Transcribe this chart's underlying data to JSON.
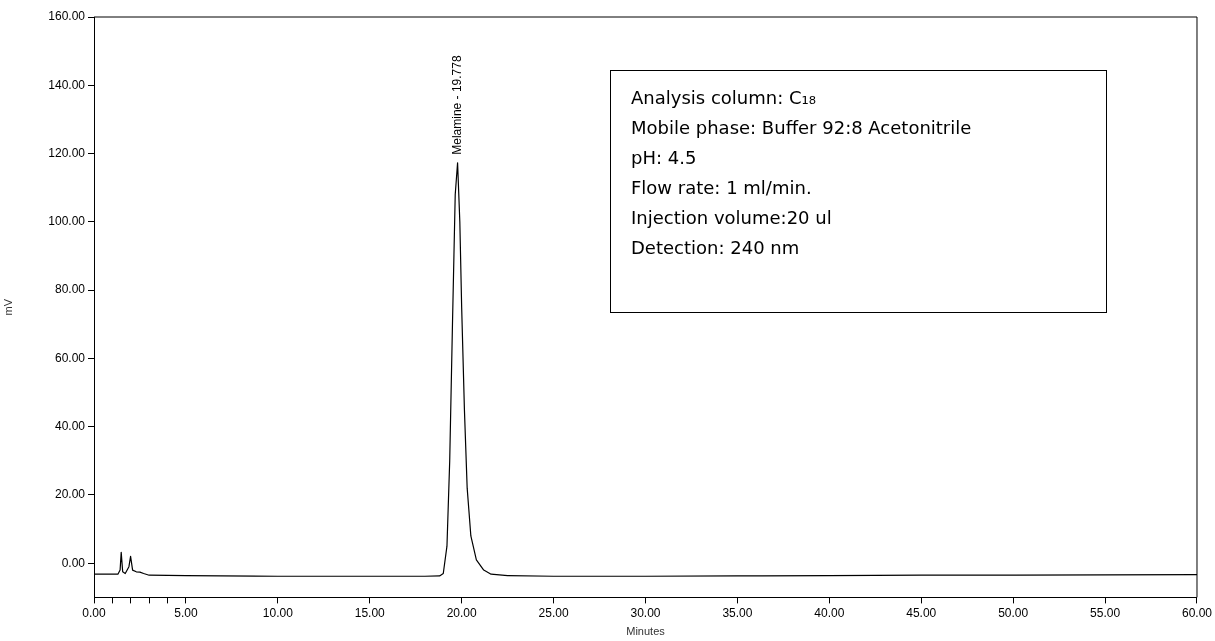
{
  "chart_data": {
    "type": "line",
    "xlabel": "Minutes",
    "ylabel": "mV",
    "xlim": [
      0,
      60
    ],
    "ylim": [
      -10,
      160
    ],
    "xticks": [
      {
        "value": 1,
        "label": null
      },
      {
        "value": 2,
        "label": null
      },
      {
        "value": 3,
        "label": null
      },
      {
        "value": 4,
        "label": null
      },
      {
        "value": 0,
        "label": "0.00"
      },
      {
        "value": 5,
        "label": "5.00"
      },
      {
        "value": 10,
        "label": "10.00"
      },
      {
        "value": 15,
        "label": "15.00"
      },
      {
        "value": 20,
        "label": "20.00"
      },
      {
        "value": 25,
        "label": "25.00"
      },
      {
        "value": 30,
        "label": "30.00"
      },
      {
        "value": 35,
        "label": "35.00"
      },
      {
        "value": 40,
        "label": "40.00"
      },
      {
        "value": 45,
        "label": "45.00"
      },
      {
        "value": 50,
        "label": "50.00"
      },
      {
        "value": 55,
        "label": "55.00"
      },
      {
        "value": 60,
        "label": "60.00"
      }
    ],
    "yticks": [
      {
        "value": 0,
        "label": "0.00"
      },
      {
        "value": 20,
        "label": "20.00"
      },
      {
        "value": 40,
        "label": "40.00"
      },
      {
        "value": 60,
        "label": "60.00"
      },
      {
        "value": 80,
        "label": "80.00"
      },
      {
        "value": 100,
        "label": "100.00"
      },
      {
        "value": 120,
        "label": "120.00"
      },
      {
        "value": 140,
        "label": "140.00"
      },
      {
        "value": 160,
        "label": "160.00"
      }
    ],
    "series": [
      {
        "color": "#000000",
        "x": [
          0,
          1.3,
          1.42,
          1.48,
          1.56,
          1.7,
          1.9,
          1.99,
          2.1,
          2.3,
          2.5,
          2.7,
          3,
          5,
          10,
          15,
          18,
          18.8,
          19,
          19.2,
          19.35,
          19.5,
          19.65,
          19.778,
          19.9,
          20,
          20.15,
          20.3,
          20.5,
          20.8,
          21.2,
          21.6,
          22.5,
          25,
          30,
          35,
          40,
          45,
          50,
          55,
          60
        ],
        "values": [
          -3.2,
          -3.2,
          -2,
          3.2,
          -2.5,
          -3,
          -1,
          2,
          -2,
          -2.5,
          -2.6,
          -3,
          -3.5,
          -3.6,
          -3.8,
          -3.8,
          -3.8,
          -3.7,
          -3,
          5,
          30,
          70,
          108,
          117.3,
          100,
          75,
          45,
          22,
          8,
          1,
          -2,
          -3.2,
          -3.6,
          -3.8,
          -3.8,
          -3.7,
          -3.6,
          -3.5,
          -3.5,
          -3.4,
          -3.3
        ]
      }
    ],
    "annotations": [
      {
        "text": "Melamine - 19.778",
        "x": 19.778,
        "y": 117.3
      },
      "Analysis column: C₁₈",
      "Mobile phase: Buffer 92:8 Acetonitrile",
      "pH: 4.5",
      "Flow rate: 1 ml/min.",
      "Injection volume:20 ul",
      "Detection: 240 nm"
    ],
    "grid": false,
    "legend": false,
    "marker": "none",
    "line_style": "solid"
  }
}
